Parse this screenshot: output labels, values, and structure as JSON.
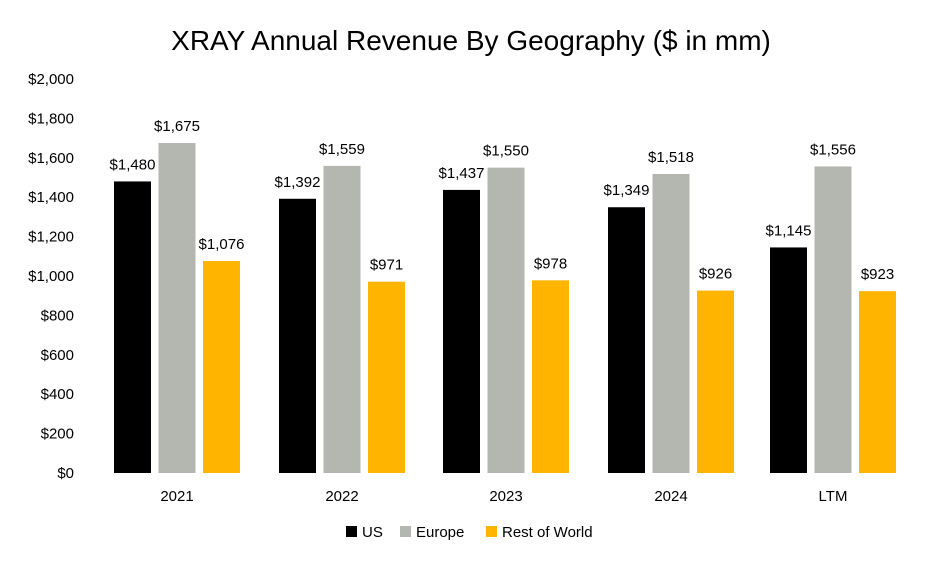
{
  "chart_data": {
    "type": "bar",
    "title": "XRAY Annual Revenue By Geography ($ in mm)",
    "xlabel": "",
    "ylabel": "",
    "categories": [
      "2021",
      "2022",
      "2023",
      "2024",
      "LTM"
    ],
    "ylim": [
      0,
      2000
    ],
    "yticks": [
      0,
      200,
      400,
      600,
      800,
      1000,
      1200,
      1400,
      1600,
      1800,
      2000
    ],
    "ytick_labels": [
      "$0",
      "$200",
      "$400",
      "$600",
      "$800",
      "$1,000",
      "$1,200",
      "$1,400",
      "$1,600",
      "$1,800",
      "$2,000"
    ],
    "grid": false,
    "legend_position": "bottom",
    "series": [
      {
        "name": "US",
        "color": "#000000",
        "values": [
          1480,
          1392,
          1437,
          1349,
          1145
        ],
        "labels": [
          "$1,480",
          "$1,392",
          "$1,437",
          "$1,349",
          "$1,145"
        ]
      },
      {
        "name": "Europe",
        "color": "#b4b6b0",
        "values": [
          1675,
          1559,
          1550,
          1518,
          1556
        ],
        "labels": [
          "$1,675",
          "$1,559",
          "$1,550",
          "$1,518",
          "$1,556"
        ]
      },
      {
        "name": "Rest of World",
        "color": "#ffb400",
        "values": [
          1076,
          971,
          978,
          926,
          923
        ],
        "labels": [
          "$1,076",
          "$971",
          "$978",
          "$926",
          "$923"
        ]
      }
    ]
  }
}
